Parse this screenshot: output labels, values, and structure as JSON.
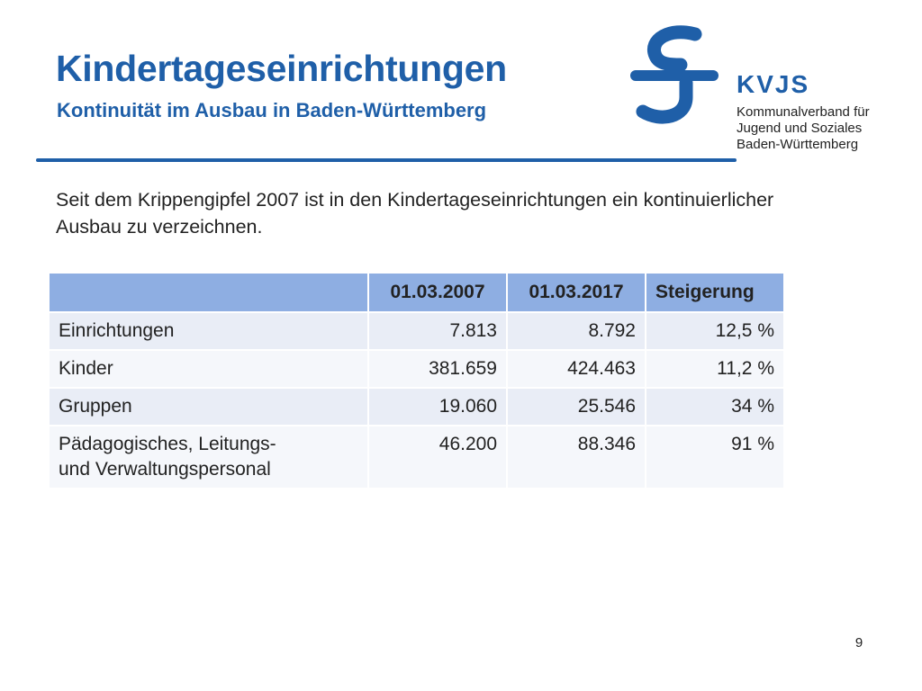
{
  "slide": {
    "title": "Kindertageseinrichtungen",
    "subtitle": "Kontinuität im Ausbau in Baden-Württemberg",
    "intro": "Seit dem Krippengipfel 2007 ist in den Kindertageseinrichtungen ein kontinuierlicher Ausbau zu verzeichnen.",
    "page_number": "9"
  },
  "logo": {
    "abbr": "KVJS",
    "name": "Kommunalverband für\nJugend und Soziales\nBaden-Württemberg"
  },
  "table": {
    "headers": [
      "",
      "01.03.2007",
      "01.03.2017",
      "Steigerung"
    ],
    "rows": [
      {
        "label": "Einrichtungen",
        "v2007": "7.813",
        "v2017": "8.792",
        "increase": "12,5 %"
      },
      {
        "label": "Kinder",
        "v2007": "381.659",
        "v2017": "424.463",
        "increase": "11,2 %"
      },
      {
        "label": "Gruppen",
        "v2007": "19.060",
        "v2017": "25.546",
        "increase": "34 %"
      },
      {
        "label": "Pädagogisches, Leitungs-\nund Verwaltungspersonal",
        "v2007": "46.200",
        "v2017": "88.346",
        "increase": "91 %"
      }
    ]
  },
  "colors": {
    "accent": "#1f5fa8",
    "header_fill": "#8eaee2",
    "row_fill": "#e9edf6",
    "row_fill_alt": "#f5f7fb"
  },
  "icons": {
    "logo_mark": "kvjs-logo-icon"
  }
}
